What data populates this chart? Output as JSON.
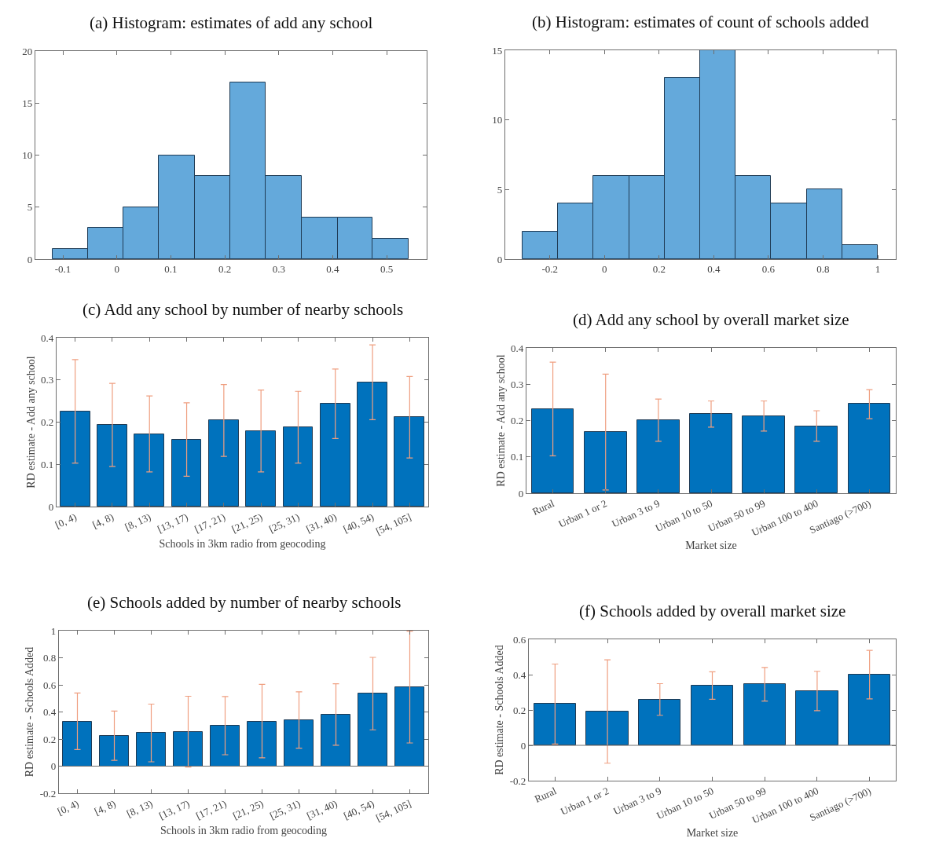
{
  "chart_data": [
    {
      "type": "histogram",
      "title": "(a) Histogram: estimates of add any school",
      "bins": [
        -0.119,
        -0.053,
        0.012,
        0.078,
        0.145,
        0.21,
        0.276,
        0.343,
        0.409,
        0.474,
        0.54
      ],
      "values": [
        1,
        3,
        5,
        10,
        8,
        17,
        8,
        4,
        4,
        2
      ],
      "color": "#64a9db",
      "xlim": [
        -0.151,
        0.574
      ],
      "xticks": [
        -0.1,
        0,
        0.1,
        0.2,
        0.3,
        0.4,
        0.5
      ],
      "ylim": [
        0,
        20
      ],
      "yticks": [
        0,
        5,
        10,
        15,
        20
      ]
    },
    {
      "type": "histogram",
      "title": "(b) Histogram: estimates of count of schools added",
      "bins": [
        -0.3,
        -0.17,
        -0.04,
        0.09,
        0.22,
        0.35,
        0.48,
        0.61,
        0.74,
        0.87,
        1.0
      ],
      "values": [
        2,
        4,
        6,
        6,
        13,
        15,
        6,
        4,
        5,
        1
      ],
      "color": "#64a9db",
      "xlim": [
        -0.363,
        1.066
      ],
      "xticks": [
        -0.2,
        0,
        0.2,
        0.4,
        0.6,
        0.8,
        1
      ],
      "ylim": [
        0,
        15
      ],
      "yticks": [
        0,
        5,
        10,
        15
      ]
    },
    {
      "type": "bar",
      "title": "(c) Add any school by number of nearby schools",
      "xlabel": "Schools in 3km radio from geocoding",
      "ylabel": "RD estimate - Add any school",
      "categories": [
        "[0, 4)",
        "[4, 8)",
        "[8, 13)",
        "[13, 17)",
        "[17, 21)",
        "[21, 25)",
        "[25, 31)",
        "[31, 40)",
        "[40, 54)",
        "[54, 105]"
      ],
      "values": [
        0.225,
        0.194,
        0.171,
        0.159,
        0.204,
        0.179,
        0.187,
        0.244,
        0.294,
        0.212
      ],
      "errors": [
        [
          0.103,
          0.348
        ],
        [
          0.095,
          0.292
        ],
        [
          0.082,
          0.262
        ],
        [
          0.072,
          0.246
        ],
        [
          0.119,
          0.289
        ],
        [
          0.082,
          0.276
        ],
        [
          0.103,
          0.273
        ],
        [
          0.161,
          0.326
        ],
        [
          0.206,
          0.383
        ],
        [
          0.115,
          0.308
        ]
      ],
      "color": "#0072bd",
      "ylim": [
        0,
        0.4
      ],
      "yticks": [
        0,
        0.1,
        0.2,
        0.3,
        0.4
      ]
    },
    {
      "type": "bar",
      "title": "(d) Add any school by overall market size",
      "xlabel": "Market size",
      "ylabel": "RD estimate - Add any school",
      "categories": [
        "Rural",
        "Urban 1 or 2",
        "Urban 3 to 9",
        "Urban 10 to 50",
        "Urban 50 to 99",
        "Urban 100 to 400",
        "Santiago (>700)"
      ],
      "values": [
        0.232,
        0.169,
        0.201,
        0.218,
        0.212,
        0.184,
        0.246
      ],
      "errors": [
        [
          0.103,
          0.361
        ],
        [
          0.009,
          0.328
        ],
        [
          0.143,
          0.259
        ],
        [
          0.182,
          0.254
        ],
        [
          0.171,
          0.254
        ],
        [
          0.143,
          0.227
        ],
        [
          0.205,
          0.285
        ]
      ],
      "color": "#0072bd",
      "ylim": [
        0,
        0.4
      ],
      "yticks": [
        0,
        0.1,
        0.2,
        0.3,
        0.4
      ]
    },
    {
      "type": "bar",
      "title": "(e) Schools added by number of nearby schools",
      "xlabel": "Schools in 3km radio from geocoding",
      "ylabel": "RD estimate - Schools Added",
      "categories": [
        "[0, 4)",
        "[4, 8)",
        "[8, 13)",
        "[13, 17)",
        "[17, 21)",
        "[21, 25)",
        "[25, 31)",
        "[31, 40)",
        "[40, 54)",
        "[54, 105]"
      ],
      "values": [
        0.328,
        0.225,
        0.244,
        0.255,
        0.298,
        0.33,
        0.34,
        0.381,
        0.535,
        0.585
      ],
      "errors": [
        [
          0.122,
          0.54
        ],
        [
          0.043,
          0.407
        ],
        [
          0.032,
          0.458
        ],
        [
          -0.006,
          0.516
        ],
        [
          0.084,
          0.514
        ],
        [
          0.062,
          0.604
        ],
        [
          0.133,
          0.548
        ],
        [
          0.154,
          0.608
        ],
        [
          0.268,
          0.803
        ],
        [
          0.171,
          0.996
        ]
      ],
      "color": "#0072bd",
      "ylim": [
        -0.2,
        1
      ],
      "yticks": [
        -0.2,
        0,
        0.2,
        0.4,
        0.6,
        0.8,
        1
      ]
    },
    {
      "type": "bar",
      "title": "(f) Schools added by overall market size",
      "xlabel": "Market size",
      "ylabel": "RD estimate - Schools Added",
      "categories": [
        "Rural",
        "Urban 1 or 2",
        "Urban 3 to 9",
        "Urban 10 to 50",
        "Urban 50 to 99",
        "Urban 100 to 400",
        "Santiago (>700)"
      ],
      "values": [
        0.234,
        0.191,
        0.259,
        0.339,
        0.346,
        0.306,
        0.401
      ],
      "errors": [
        [
          0.007,
          0.46
        ],
        [
          -0.101,
          0.484
        ],
        [
          0.17,
          0.349
        ],
        [
          0.261,
          0.416
        ],
        [
          0.251,
          0.441
        ],
        [
          0.196,
          0.419
        ],
        [
          0.263,
          0.537
        ]
      ],
      "color": "#0072bd",
      "ylim": [
        -0.2,
        0.6
      ],
      "yticks": [
        -0.2,
        0,
        0.2,
        0.4,
        0.6
      ]
    }
  ]
}
